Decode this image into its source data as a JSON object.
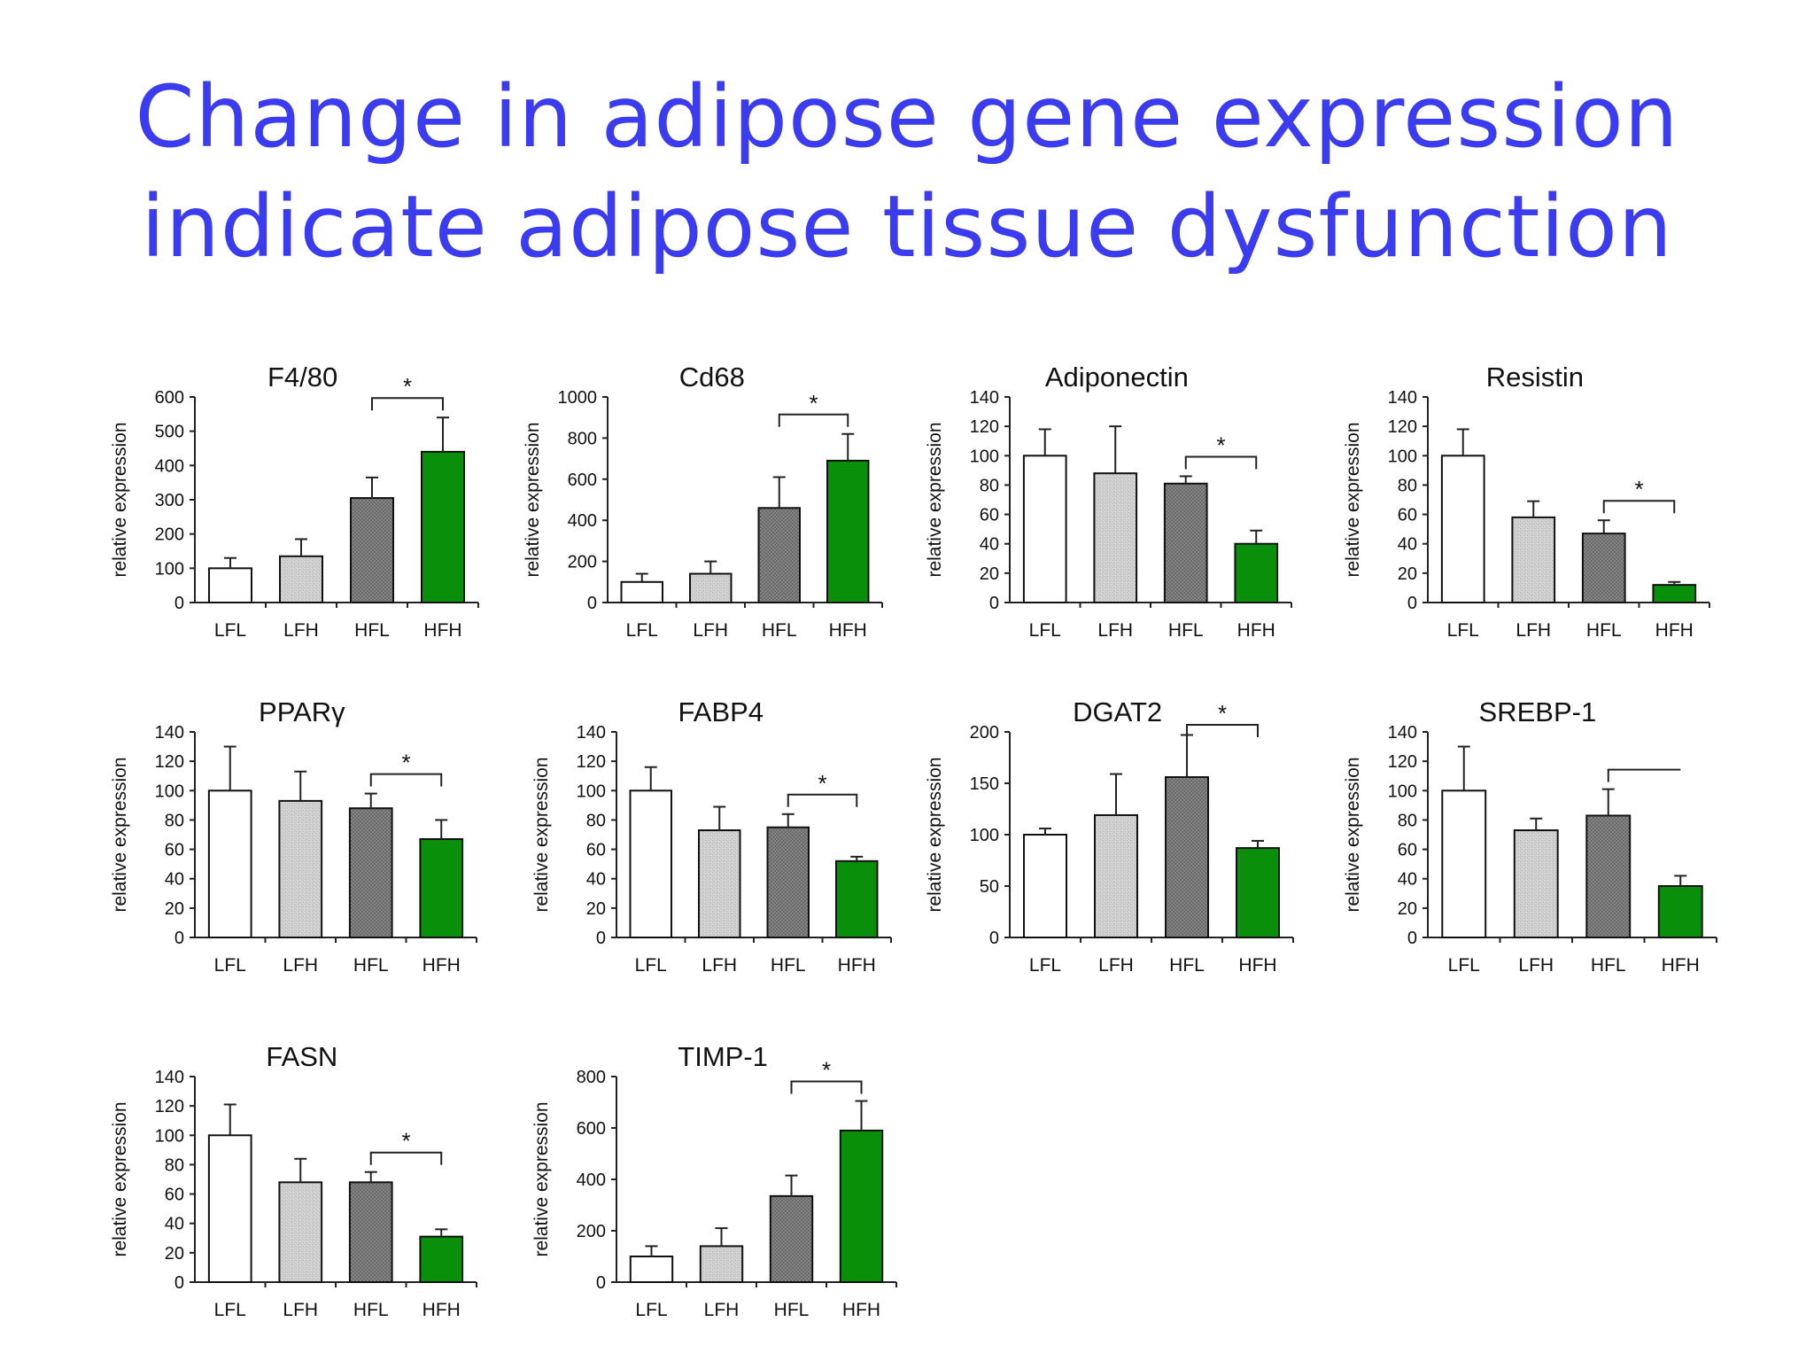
{
  "slide": {
    "title_line1": "Change in adipose gene expression",
    "title_line2": "indicate adipose tissue dysfunction"
  },
  "colors": {
    "title": "#3b3bf0",
    "LFL": "#ffffff",
    "LFH": "#c8c8c8",
    "HFL": "#7a7a7a",
    "HFH": "#0a8f0a"
  },
  "chart_data": [
    {
      "type": "bar",
      "title": "F4/80",
      "ylabel": "relative expression",
      "categories": [
        "LFL",
        "LFH",
        "HFL",
        "HFH"
      ],
      "values": [
        100,
        135,
        305,
        440
      ],
      "error": [
        30,
        50,
        60,
        100
      ],
      "ylim": [
        0,
        600
      ],
      "yticks": [
        0,
        100,
        200,
        300,
        400,
        500,
        600
      ],
      "significance": {
        "from": 2,
        "to": 3,
        "label": "*"
      }
    },
    {
      "type": "bar",
      "title": "Cd68",
      "ylabel": "relative expression",
      "categories": [
        "LFL",
        "LFH",
        "HFL",
        "HFH"
      ],
      "values": [
        100,
        140,
        460,
        690
      ],
      "error": [
        40,
        60,
        150,
        130
      ],
      "ylim": [
        0,
        1000
      ],
      "yticks": [
        0,
        200,
        400,
        600,
        800,
        1000
      ],
      "significance": {
        "from": 2,
        "to": 3,
        "label": "*"
      }
    },
    {
      "type": "bar",
      "title": "Adiponectin",
      "ylabel": "relative expression",
      "categories": [
        "LFL",
        "LFH",
        "HFL",
        "HFH"
      ],
      "values": [
        100,
        88,
        81,
        40
      ],
      "error": [
        18,
        32,
        5,
        9
      ],
      "ylim": [
        0,
        140
      ],
      "yticks": [
        0,
        20,
        40,
        60,
        80,
        100,
        120,
        140
      ],
      "significance": {
        "from": 2,
        "to": 3,
        "label": "*"
      }
    },
    {
      "type": "bar",
      "title": "Resistin",
      "ylabel": "relative expression",
      "categories": [
        "LFL",
        "LFH",
        "HFL",
        "HFH"
      ],
      "values": [
        100,
        58,
        47,
        12
      ],
      "error": [
        18,
        11,
        9,
        2
      ],
      "ylim": [
        0,
        140
      ],
      "yticks": [
        0,
        20,
        40,
        60,
        80,
        100,
        120,
        140
      ],
      "significance": {
        "from": 2,
        "to": 3,
        "label": "*"
      }
    },
    {
      "type": "bar",
      "title": "PPARγ",
      "ylabel": "relative expression",
      "categories": [
        "LFL",
        "LFH",
        "HFL",
        "HFH"
      ],
      "values": [
        100,
        93,
        88,
        67
      ],
      "error": [
        30,
        20,
        10,
        13
      ],
      "ylim": [
        0,
        140
      ],
      "yticks": [
        0,
        20,
        40,
        60,
        80,
        100,
        120,
        140
      ],
      "significance": {
        "from": 2,
        "to": 3,
        "label": "*"
      }
    },
    {
      "type": "bar",
      "title": "FABP4",
      "ylabel": "relative expression",
      "categories": [
        "LFL",
        "LFH",
        "HFL",
        "HFH"
      ],
      "values": [
        100,
        73,
        75,
        52
      ],
      "error": [
        16,
        16,
        9,
        3
      ],
      "ylim": [
        0,
        140
      ],
      "yticks": [
        0,
        20,
        40,
        60,
        80,
        100,
        120,
        140
      ],
      "significance": {
        "from": 2,
        "to": 3,
        "label": "*"
      }
    },
    {
      "type": "bar",
      "title": "DGAT2",
      "ylabel": "relative expression",
      "categories": [
        "LFL",
        "LFH",
        "HFL",
        "HFH"
      ],
      "values": [
        100,
        119,
        156,
        87
      ],
      "error": [
        6,
        40,
        41,
        7
      ],
      "ylim": [
        0,
        200
      ],
      "yticks": [
        0,
        50,
        100,
        150,
        200
      ],
      "significance": {
        "from": 2,
        "to": 3,
        "label": "*"
      }
    },
    {
      "type": "bar",
      "title": "SREBP-1",
      "ylabel": "relative expression",
      "categories": [
        "LFL",
        "LFH",
        "HFL",
        "HFH"
      ],
      "values": [
        100,
        73,
        83,
        35
      ],
      "error": [
        30,
        8,
        18,
        7
      ],
      "ylim": [
        0,
        140
      ],
      "yticks": [
        0,
        20,
        40,
        60,
        80,
        100,
        120,
        140
      ],
      "significance": {
        "from": 2,
        "to": 3,
        "label": ""
      }
    },
    {
      "type": "bar",
      "title": "FASN",
      "ylabel": "relative expression",
      "categories": [
        "LFL",
        "LFH",
        "HFL",
        "HFH"
      ],
      "values": [
        100,
        68,
        68,
        31
      ],
      "error": [
        21,
        16,
        7,
        5
      ],
      "ylim": [
        0,
        140
      ],
      "yticks": [
        0,
        20,
        40,
        60,
        80,
        100,
        120,
        140
      ],
      "significance": {
        "from": 2,
        "to": 3,
        "label": "*"
      }
    },
    {
      "type": "bar",
      "title": "TIMP-1",
      "ylabel": "relative expression",
      "categories": [
        "LFL",
        "LFH",
        "HFL",
        "HFH"
      ],
      "values": [
        100,
        140,
        335,
        590
      ],
      "error": [
        40,
        70,
        80,
        115
      ],
      "ylim": [
        0,
        800
      ],
      "yticks": [
        0,
        200,
        400,
        600,
        800
      ],
      "significance": {
        "from": 2,
        "to": 3,
        "label": "*"
      }
    }
  ]
}
